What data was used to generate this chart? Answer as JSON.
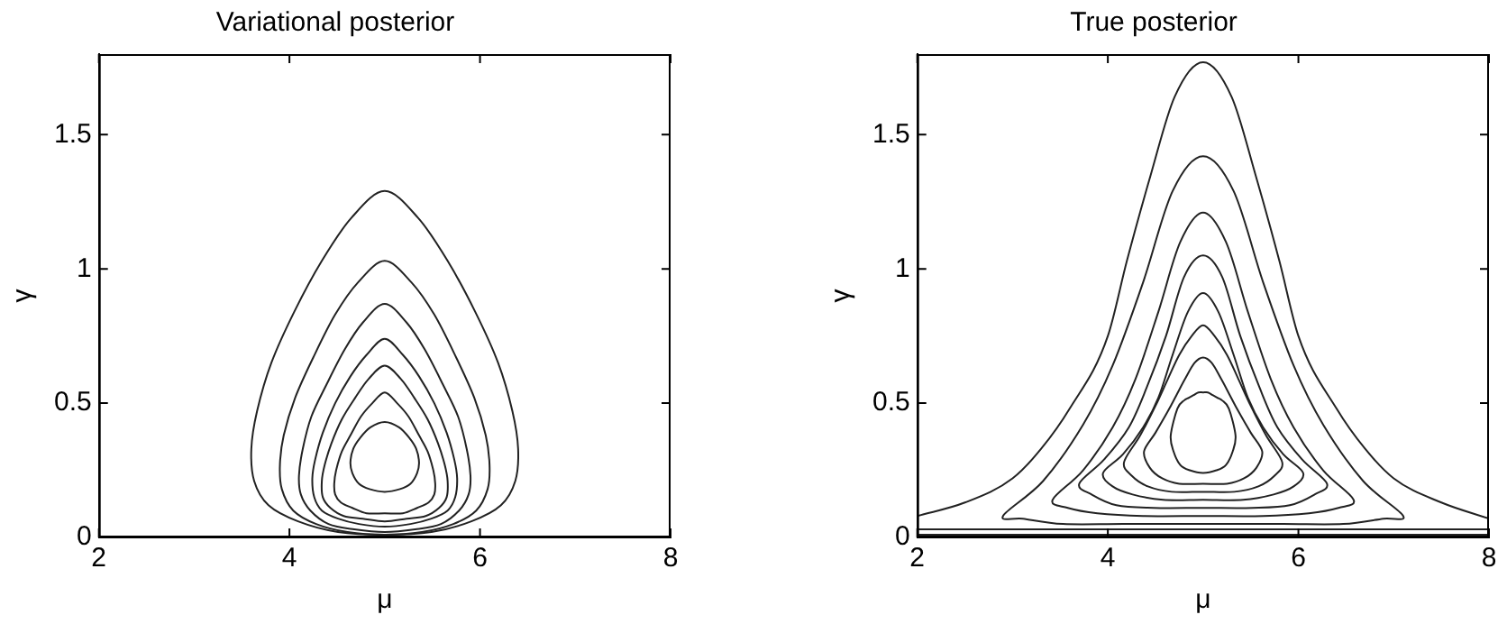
{
  "chart_data": [
    {
      "type": "line",
      "title": "Variational posterior",
      "xlabel": "μ",
      "ylabel": "γ",
      "xlim": [
        2,
        8
      ],
      "ylim": [
        0,
        1.8
      ],
      "xticks": [
        2,
        4,
        6,
        8
      ],
      "yticks": [
        0,
        0.5,
        1,
        1.5
      ],
      "grid": false,
      "legend": false
    },
    {
      "type": "line",
      "title": "True posterior",
      "xlabel": "μ",
      "ylabel": "γ",
      "xlim": [
        2,
        8
      ],
      "ylim": [
        0,
        1.8
      ],
      "xticks": [
        2,
        4,
        6,
        8
      ],
      "yticks": [
        0,
        0.5,
        1,
        1.5
      ],
      "grid": false,
      "legend": false,
      "marker": "none",
      "series": [
        {
          "color": "#222222",
          "x": [
            2,
            2.5,
            3,
            3.3,
            3.6,
            4,
            4.2,
            4.45,
            4.7,
            5,
            5.3,
            5.55,
            5.8,
            6,
            6.4,
            6.7,
            7,
            7.5,
            8
          ],
          "values": [
            0.08,
            0.13,
            0.22,
            0.33,
            0.48,
            0.75,
            1.03,
            1.35,
            1.64,
            1.77,
            1.64,
            1.35,
            1.03,
            0.75,
            0.48,
            0.33,
            0.22,
            0.13,
            0.07
          ]
        },
        {
          "color": "#222222",
          "x": [
            2,
            8
          ],
          "values": [
            0.03,
            0.03
          ]
        },
        {
          "color": "#222222",
          "x": [
            2,
            8
          ],
          "values": [
            0.01,
            0.01
          ]
        }
      ]
    }
  ]
}
